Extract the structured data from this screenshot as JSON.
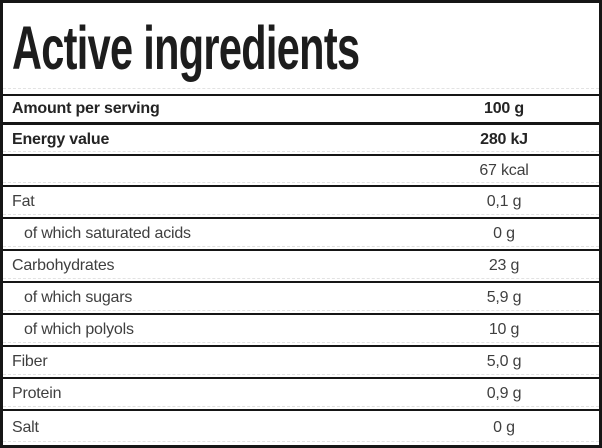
{
  "table": {
    "title": "Active ingredients",
    "header_row": {
      "label": "Amount per serving",
      "value": "100 g"
    },
    "rows": [
      {
        "label": "Energy value",
        "value": "280 kJ",
        "bold": true,
        "indent": false
      },
      {
        "label": "",
        "value": "67 kcal",
        "bold": false,
        "indent": false
      },
      {
        "label": "Fat",
        "value": "0,1 g",
        "bold": false,
        "indent": false
      },
      {
        "label": "of which saturated acids",
        "value": "0 g",
        "bold": false,
        "indent": true
      },
      {
        "label": "Carbohydrates",
        "value": "23 g",
        "bold": false,
        "indent": false
      },
      {
        "label": "of which sugars",
        "value": "5,9 g",
        "bold": false,
        "indent": true
      },
      {
        "label": "of which polyols",
        "value": "10 g",
        "bold": false,
        "indent": true
      },
      {
        "label": "Fiber",
        "value": "5,0 g",
        "bold": false,
        "indent": false
      },
      {
        "label": "Protein",
        "value": "0,9 g",
        "bold": false,
        "indent": false
      },
      {
        "label": "Salt",
        "value": "0 g",
        "bold": false,
        "indent": false
      }
    ],
    "colors": {
      "border": "#161616",
      "text": "#3f3f3f",
      "text_bold": "#242424",
      "dashed_line": "#e3e3e3",
      "background": "#ffffff"
    }
  }
}
